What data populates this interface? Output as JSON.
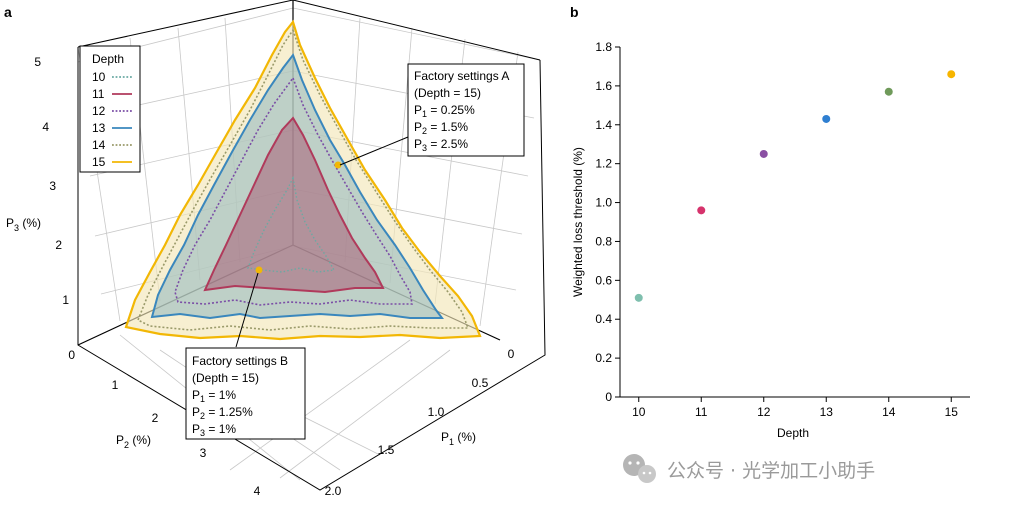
{
  "panel_a": {
    "label": "a",
    "p3_ticks": [
      "0",
      "1",
      "2",
      "3",
      "4",
      "5"
    ],
    "p2_ticks": [
      "1",
      "2",
      "3",
      "4"
    ],
    "p1_ticks": [
      "0",
      "0.5",
      "1.0",
      "1.5",
      "2.0"
    ],
    "p3_axis_main": "P",
    "p3_axis_sub": "3",
    "p3_axis_unit": " (%)",
    "p2_axis_main": "P",
    "p2_axis_sub": "2",
    "p2_axis_unit": " (%)",
    "p1_axis_main": "P",
    "p1_axis_sub": "1",
    "p1_axis_unit": " (%)",
    "legend": {
      "title": "Depth",
      "entries": [
        {
          "depth": "10",
          "color": "#6aa9a3",
          "style": "dotted"
        },
        {
          "depth": "11",
          "color": "#b03a5b",
          "style": "solid"
        },
        {
          "depth": "12",
          "color": "#7b4ea6",
          "style": "dotted"
        },
        {
          "depth": "13",
          "color": "#3a87bd",
          "style": "solid"
        },
        {
          "depth": "14",
          "color": "#9a9a6a",
          "style": "dotted"
        },
        {
          "depth": "15",
          "color": "#f2b705",
          "style": "solid"
        }
      ]
    },
    "callout_a": {
      "title": "Factory settings A",
      "depth": "(Depth = 15)",
      "p1": "= 0.25%",
      "p2": "= 1.5%",
      "p3": "= 2.5%"
    },
    "callout_b": {
      "title": "Factory settings B",
      "depth": "(Depth = 15)",
      "p1": "= 1%",
      "p2": "= 1.25%",
      "p3": "= 1%"
    }
  },
  "chart_data": {
    "type": "scatter",
    "panel_label": "b",
    "x": [
      10,
      11,
      12,
      13,
      14,
      15
    ],
    "y": [
      0.51,
      0.96,
      1.25,
      1.43,
      1.57,
      1.66
    ],
    "point_colors": [
      "#7fbfae",
      "#d6336c",
      "#8a4fa3",
      "#2f7fd1",
      "#6f9a5a",
      "#f7b500"
    ],
    "xlabel": "Depth",
    "ylabel": "Weighted loss threshold (%)",
    "xlim": [
      9.7,
      15.3
    ],
    "ylim": [
      0,
      1.8
    ],
    "xticks": [
      10,
      11,
      12,
      13,
      14,
      15
    ],
    "yticks": [
      0,
      0.2,
      0.4,
      0.6,
      0.8,
      1.0,
      1.2,
      1.4,
      1.6,
      1.8
    ],
    "ytick_labels": [
      "0",
      "0.2",
      "0.4",
      "0.6",
      "0.8",
      "1.0",
      "1.2",
      "1.4",
      "1.6",
      "1.8"
    ]
  },
  "watermark": {
    "icon": "wechat-icon",
    "text": "公众号 · 光学加工小助手"
  }
}
